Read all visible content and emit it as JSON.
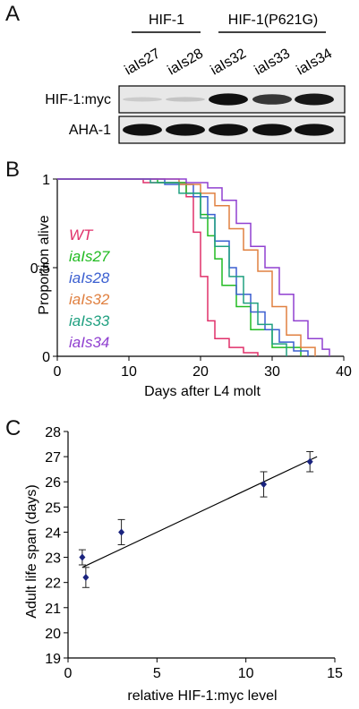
{
  "panel_letters": {
    "a": "A",
    "b": "B",
    "c": "C"
  },
  "blot": {
    "group1_label": "HIF-1",
    "group2_label": "HIF-1(P621G)",
    "lanes": [
      "iaIs27",
      "iaIs28",
      "iaIs32",
      "iaIs33",
      "iaIs34"
    ],
    "rows": [
      {
        "label": "HIF-1:myc",
        "intensities": [
          0.12,
          0.15,
          0.95,
          0.78,
          0.92
        ]
      },
      {
        "label": "AHA-1",
        "intensities": [
          0.95,
          0.95,
          0.95,
          0.95,
          0.95
        ]
      }
    ]
  },
  "chart_data": [
    {
      "type": "line",
      "xlabel": "Days after L4 molt",
      "ylabel": "Proportion alive",
      "xlim": [
        0,
        40
      ],
      "ylim": [
        0,
        1
      ],
      "xticks": [
        0,
        10,
        20,
        30,
        40
      ],
      "yticks": [
        0,
        0.5,
        1
      ],
      "ytick_labels": [
        "0",
        "0.5",
        "1"
      ],
      "legend_position": "left, inside",
      "series": [
        {
          "name": "WT",
          "color": "#e0306a",
          "x": [
            0,
            12,
            18,
            19,
            20,
            21,
            22,
            24,
            26,
            28
          ],
          "y": [
            1,
            0.98,
            0.9,
            0.7,
            0.45,
            0.2,
            0.1,
            0.05,
            0.02,
            0
          ]
        },
        {
          "name": "iaIs27",
          "color": "#22bb22",
          "x": [
            0,
            14,
            18,
            20,
            21,
            22,
            23,
            25,
            27,
            30,
            34
          ],
          "y": [
            1,
            0.98,
            0.92,
            0.8,
            0.68,
            0.55,
            0.4,
            0.28,
            0.15,
            0.05,
            0
          ]
        },
        {
          "name": "iaIs28",
          "color": "#3b5fd0",
          "x": [
            0,
            15,
            19,
            21,
            22,
            24,
            25,
            27,
            29,
            31,
            33,
            35
          ],
          "y": [
            1,
            0.97,
            0.9,
            0.8,
            0.65,
            0.5,
            0.35,
            0.25,
            0.15,
            0.08,
            0.03,
            0
          ]
        },
        {
          "name": "iaIs32",
          "color": "#e08040",
          "x": [
            0,
            17,
            20,
            22,
            24,
            26,
            28,
            30,
            32,
            34,
            36
          ],
          "y": [
            1,
            0.97,
            0.92,
            0.85,
            0.72,
            0.6,
            0.48,
            0.28,
            0.12,
            0.05,
            0
          ]
        },
        {
          "name": "iaIs33",
          "color": "#20a080",
          "x": [
            0,
            13,
            17,
            20,
            22,
            24,
            26,
            28,
            30,
            32
          ],
          "y": [
            1,
            0.98,
            0.92,
            0.78,
            0.62,
            0.45,
            0.3,
            0.18,
            0.07,
            0
          ]
        },
        {
          "name": "iaIs34",
          "color": "#9040d0",
          "x": [
            0,
            18,
            21,
            23,
            25,
            27,
            29,
            31,
            33,
            35,
            37,
            38
          ],
          "y": [
            1,
            0.98,
            0.95,
            0.88,
            0.75,
            0.62,
            0.5,
            0.35,
            0.2,
            0.1,
            0.04,
            0
          ]
        }
      ]
    },
    {
      "type": "scatter",
      "xlabel": "relative HIF-1:myc level",
      "ylabel": "Adult life span (days)",
      "xlim": [
        0,
        15
      ],
      "ylim": [
        19,
        28
      ],
      "xticks": [
        0,
        5,
        10,
        15
      ],
      "yticks": [
        19,
        20,
        21,
        22,
        23,
        24,
        25,
        26,
        27,
        28
      ],
      "point_color": "#1a237e",
      "points": [
        {
          "x": 0.8,
          "y": 23.0,
          "err": 0.3
        },
        {
          "x": 1.0,
          "y": 22.2,
          "err": 0.4
        },
        {
          "x": 3.0,
          "y": 24.0,
          "err": 0.5
        },
        {
          "x": 11.0,
          "y": 25.9,
          "err": 0.5
        },
        {
          "x": 13.6,
          "y": 26.8,
          "err": 0.4
        }
      ],
      "fit_line": {
        "x": [
          0.8,
          14.0
        ],
        "y": [
          22.6,
          27.0
        ]
      }
    }
  ]
}
